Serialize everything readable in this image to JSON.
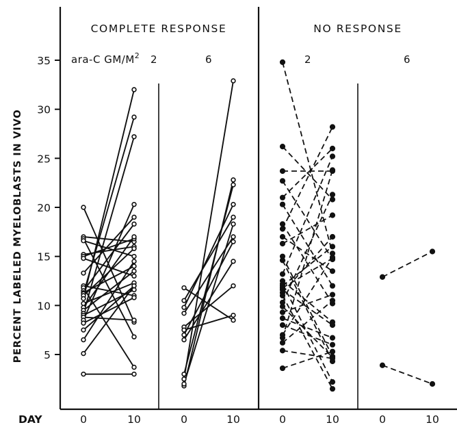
{
  "chart_data": {
    "type": "line",
    "ylabel": "PERCENT LABELED MYELOBLASTS IN VIVO",
    "xlabel": "DAY",
    "y_ticks": [
      5,
      10,
      15,
      20,
      25,
      30,
      35
    ],
    "ylim": [
      1,
      36
    ],
    "x_values": [
      "0",
      "10"
    ],
    "dose_unit_label": "ara-C GM/M",
    "dose_unit_superscript": "2",
    "groups": [
      {
        "title": "COMPLETE RESPONSE",
        "marker": "open",
        "line_style": "solid",
        "panels": [
          {
            "dose": "2",
            "pairs": [
              [
                20.0,
                8.3
              ],
              [
                17.0,
                16.5
              ],
              [
                16.8,
                6.8
              ],
              [
                16.6,
                15.0
              ],
              [
                15.2,
                16.0
              ],
              [
                15.0,
                16.8
              ],
              [
                14.8,
                13.0
              ],
              [
                13.3,
                19.0
              ],
              [
                12.0,
                11.0
              ],
              [
                11.8,
                3.7
              ],
              [
                11.5,
                18.3
              ],
              [
                11.3,
                14.0
              ],
              [
                11.2,
                29.2
              ],
              [
                11.0,
                15.8
              ],
              [
                10.7,
                32.0
              ],
              [
                10.2,
                12.3
              ],
              [
                9.8,
                17.0
              ],
              [
                9.5,
                13.5
              ],
              [
                9.2,
                27.2
              ],
              [
                9.0,
                11.6
              ],
              [
                8.8,
                8.5
              ],
              [
                8.5,
                20.3
              ],
              [
                8.2,
                10.8
              ],
              [
                7.5,
                12.0
              ],
              [
                6.5,
                14.5
              ],
              [
                5.1,
                12.0
              ],
              [
                3.0,
                3.0
              ]
            ]
          },
          {
            "dose": "6",
            "pairs": [
              [
                11.8,
                8.5
              ],
              [
                10.5,
                19.0
              ],
              [
                9.8,
                20.3
              ],
              [
                9.2,
                17.0
              ],
              [
                7.8,
                12.0
              ],
              [
                7.5,
                9.0
              ],
              [
                7.0,
                16.5
              ],
              [
                6.5,
                14.5
              ],
              [
                3.0,
                22.3
              ],
              [
                2.5,
                32.9
              ],
              [
                1.8,
                22.8
              ],
              [
                2.0,
                18.3
              ]
            ]
          }
        ]
      },
      {
        "title": "NO RESPONSE",
        "marker": "solid",
        "line_style": "dashed",
        "panels": [
          {
            "dose": "2",
            "pairs": [
              [
                34.8,
                15.3
              ],
              [
                26.2,
                20.8
              ],
              [
                23.7,
                23.7
              ],
              [
                22.7,
                14.7
              ],
              [
                21.0,
                26.0
              ],
              [
                20.3,
                12.0
              ],
              [
                18.3,
                10.2
              ],
              [
                17.8,
                28.2
              ],
              [
                17.0,
                13.5
              ],
              [
                16.3,
                19.2
              ],
              [
                15.0,
                4.8
              ],
              [
                14.6,
                4.3
              ],
              [
                13.2,
                25.2
              ],
              [
                12.5,
                8.3
              ],
              [
                12.2,
                2.2
              ],
              [
                12.0,
                16.0
              ],
              [
                11.8,
                14.8
              ],
              [
                11.6,
                8.0
              ],
              [
                11.3,
                17.0
              ],
              [
                11.0,
                1.5
              ],
              [
                10.3,
                21.3
              ],
              [
                9.9,
                4.7
              ],
              [
                9.3,
                11.1
              ],
              [
                8.7,
                6.7
              ],
              [
                8.0,
                6.0
              ],
              [
                7.0,
                14.9
              ],
              [
                6.7,
                23.8
              ],
              [
                6.2,
                10.5
              ],
              [
                5.4,
                4.6
              ],
              [
                3.6,
                5.3
              ]
            ]
          },
          {
            "dose": "6",
            "pairs": [
              [
                12.9,
                15.5
              ],
              [
                3.9,
                2.0
              ]
            ]
          }
        ]
      }
    ]
  }
}
